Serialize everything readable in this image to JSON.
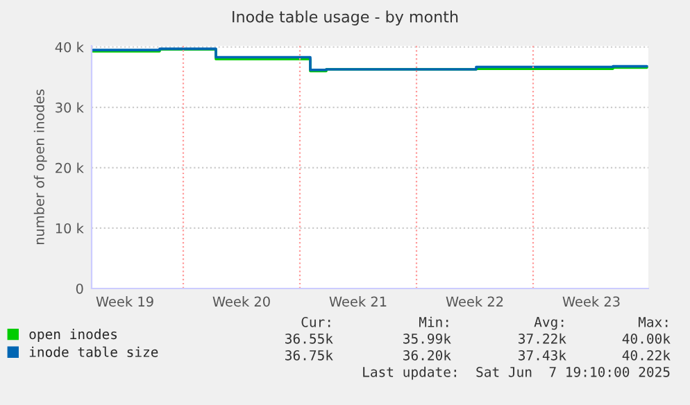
{
  "chart_data": {
    "type": "step",
    "title": "Inode table usage - by month",
    "ylabel": "number of open inodes",
    "xlim": [
      "2025-05-06T12:00",
      "2025-06-08T22:00"
    ],
    "xticks": [
      {
        "value": "2025-05-08T12:00",
        "label": "Week 19"
      },
      {
        "value": "2025-05-15T12:00",
        "label": "Week 20"
      },
      {
        "value": "2025-05-22T12:00",
        "label": "Week 21"
      },
      {
        "value": "2025-05-29T12:00",
        "label": "Week 22"
      },
      {
        "value": "2025-06-05T12:00",
        "label": "Week 23"
      }
    ],
    "ylim": [
      0,
      40200
    ],
    "yticks": [
      {
        "value": 0,
        "label": "0"
      },
      {
        "value": 10000,
        "label": "10 k"
      },
      {
        "value": 20000,
        "label": "20 k"
      },
      {
        "value": 30000,
        "label": "30 k"
      },
      {
        "value": 40000,
        "label": "40 k"
      }
    ],
    "grid": "y",
    "legend": "bottom left",
    "ref_lines": [
      {
        "axis": "x",
        "value": "2025-05-12",
        "color": "#ff9999",
        "line_style": "dotted"
      },
      {
        "axis": "x",
        "value": "2025-05-19",
        "color": "#ff9999",
        "line_style": "dotted"
      },
      {
        "axis": "x",
        "value": "2025-05-26",
        "color": "#ff9999",
        "line_style": "dotted"
      },
      {
        "axis": "x",
        "value": "2025-06-02",
        "color": "#ff9999",
        "line_style": "dotted"
      }
    ],
    "series": [
      {
        "name": "open inodes",
        "color": "#00cc00",
        "x": [
          "2025-05-06T13:00",
          "2025-05-10T14:00",
          "2025-05-13T23:00",
          "2025-05-19T15:00",
          "2025-05-20T14:00",
          "2025-05-29T14:00",
          "2025-06-06T19:00",
          "2025-06-08T20:00"
        ],
        "values": [
          39300,
          39600,
          38000,
          36000,
          36300,
          36400,
          36600,
          36600
        ]
      },
      {
        "name": "inode table size",
        "color": "#0066b3",
        "x": [
          "2025-05-06T13:00",
          "2025-05-10T14:00",
          "2025-05-13T23:00",
          "2025-05-19T15:00",
          "2025-05-20T14:00",
          "2025-05-29T14:00",
          "2025-06-06T19:00",
          "2025-06-08T20:00"
        ],
        "values": [
          39500,
          39700,
          38300,
          36200,
          36300,
          36700,
          36800,
          36800
        ]
      }
    ],
    "annotations": [
      "Cur:",
      "Min:",
      "Avg:",
      "Max:",
      "36.55k",
      "35.99k",
      "37.22k",
      "40.00k",
      "36.75k",
      "36.20k",
      "37.43k",
      "40.22k",
      "Last update:  Sat Jun  7 19:10:00 2025"
    ]
  }
}
